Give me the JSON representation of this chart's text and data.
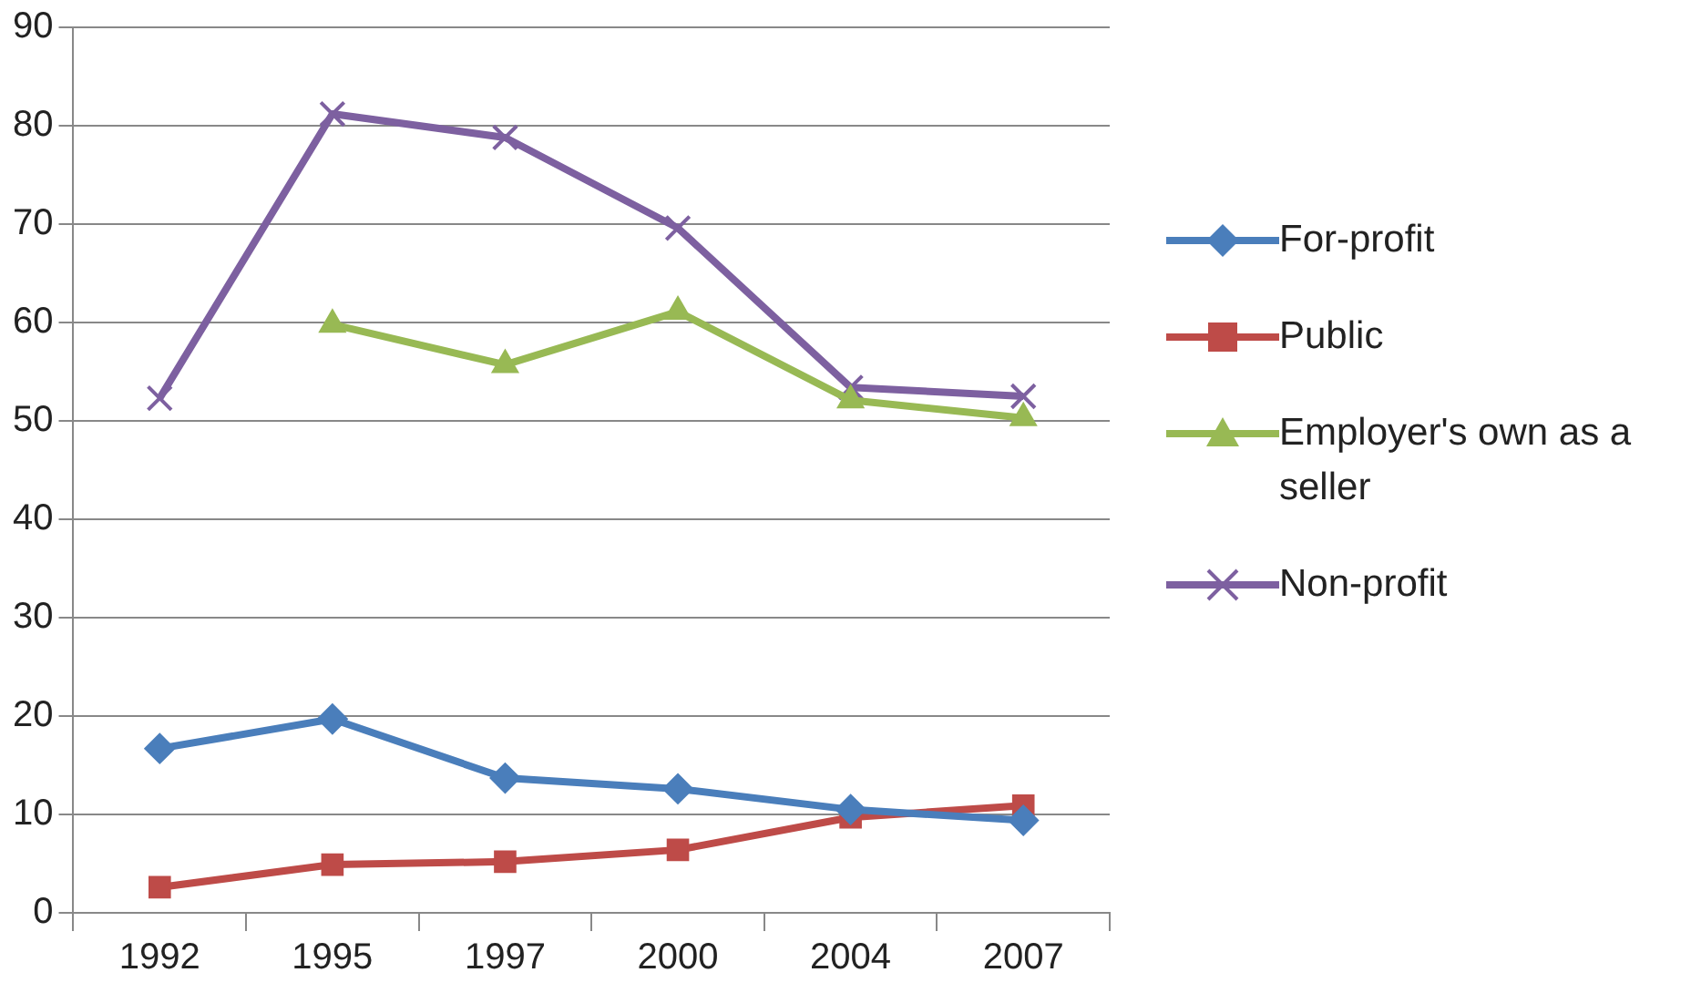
{
  "chart_data": {
    "type": "line",
    "categories": [
      "1992",
      "1995",
      "1997",
      "2000",
      "2004",
      "2007"
    ],
    "series": [
      {
        "name": "For-profit",
        "color": "#4a7ebb",
        "marker": "diamond",
        "values": [
          16.7,
          19.7,
          13.7,
          12.6,
          10.5,
          9.4
        ]
      },
      {
        "name": "Public",
        "color": "#be4b48",
        "marker": "square",
        "values": [
          2.6,
          4.9,
          5.2,
          6.4,
          9.7,
          10.9
        ]
      },
      {
        "name": "Employer's own as a seller",
        "color": "#98b954",
        "marker": "triangle",
        "values": [
          null,
          59.8,
          55.7,
          61.1,
          52.1,
          50.3
        ]
      },
      {
        "name": "Non-profit",
        "color": "#7d60a0",
        "marker": "cross",
        "values": [
          52.3,
          81.2,
          78.8,
          69.6,
          53.4,
          52.5
        ]
      }
    ],
    "ylim": [
      0,
      90
    ],
    "yticks": [
      0,
      10,
      20,
      30,
      40,
      50,
      60,
      70,
      80,
      90
    ],
    "grid": "y",
    "legend": "right"
  }
}
